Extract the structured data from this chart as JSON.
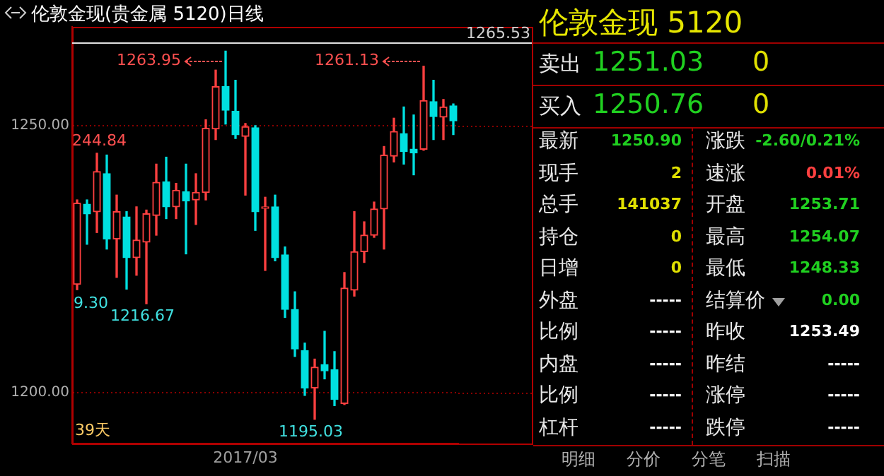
{
  "chart_data": [
    {
      "type": "candlestick",
      "title": "伦敦金现(贵金属 5120)日线",
      "categories": [
        null,
        null,
        null,
        null,
        null,
        null,
        null,
        null,
        null,
        null,
        null,
        null,
        null,
        null,
        null,
        null,
        null,
        "2017/03",
        null,
        null,
        null,
        null,
        null,
        null,
        null,
        null,
        null,
        null,
        null,
        null,
        null,
        null,
        null,
        null,
        null,
        null,
        null,
        null,
        null
      ],
      "ohlc": [
        [
          1220.3,
          1236.1,
          1219.3,
          1235.5
        ],
        [
          1235.3,
          1236.1,
          1227.8,
          1233.5
        ],
        [
          1233.9,
          1244.84,
          1230.0,
          1241.4
        ],
        [
          1241.0,
          1244.5,
          1226.9,
          1228.8
        ],
        [
          1228.8,
          1237.0,
          1221.6,
          1233.9
        ],
        [
          1232.9,
          1233.9,
          1219.4,
          1225.3
        ],
        [
          1225.3,
          1234.8,
          1222.0,
          1228.6
        ],
        [
          1228.2,
          1234.2,
          1216.67,
          1233.5
        ],
        [
          1233.2,
          1242.8,
          1229.5,
          1239.4
        ],
        [
          1239.5,
          1244.1,
          1232.6,
          1234.8
        ],
        [
          1234.8,
          1239.2,
          1232.6,
          1237.9
        ],
        [
          1237.6,
          1242.8,
          1226.0,
          1235.9
        ],
        [
          1236.1,
          1241.0,
          1231.5,
          1237.5
        ],
        [
          1237.5,
          1251.1,
          1236.1,
          1249.5
        ],
        [
          1249.4,
          1260.4,
          1247.4,
          1257.3
        ],
        [
          1257.3,
          1263.95,
          1250.3,
          1252.9
        ],
        [
          1252.7,
          1258.5,
          1247.6,
          1248.3
        ],
        [
          1248.0,
          1250.4,
          1237.0,
          1249.8
        ],
        [
          1249.6,
          1250.0,
          1230.4,
          1233.9
        ],
        [
          1234.5,
          1236.6,
          1222.9,
          1234.8
        ],
        [
          1234.8,
          1237.0,
          1224.7,
          1225.3
        ],
        [
          1225.8,
          1227.3,
          1214.1,
          1215.6
        ],
        [
          1215.6,
          1218.9,
          1206.8,
          1208.2
        ],
        [
          1207.9,
          1209.3,
          1199.5,
          1200.9
        ],
        [
          1200.9,
          1206.3,
          1195.03,
          1204.8
        ],
        [
          1205.3,
          1211.5,
          1202.6,
          1204.1
        ],
        [
          1204.3,
          1207.7,
          1197.6,
          1198.8
        ],
        [
          1198.0,
          1222.5,
          1197.8,
          1219.6
        ],
        [
          1219.2,
          1233.9,
          1218.1,
          1226.4
        ],
        [
          1226.4,
          1232.0,
          1224.4,
          1229.5
        ],
        [
          1229.5,
          1235.7,
          1229.1,
          1234.4
        ],
        [
          1234.4,
          1246.1,
          1226.9,
          1244.5
        ],
        [
          1244.3,
          1251.4,
          1243.2,
          1248.9
        ],
        [
          1248.5,
          1253.5,
          1242.8,
          1245.2
        ],
        [
          1245.6,
          1252.0,
          1240.8,
          1244.9
        ],
        [
          1245.6,
          1261.13,
          1245.4,
          1254.7
        ],
        [
          1254.5,
          1258.5,
          1247.4,
          1251.7
        ],
        [
          1251.6,
          1254.9,
          1247.4,
          1253.5
        ],
        [
          1253.71,
          1254.07,
          1248.33,
          1250.9
        ]
      ],
      "colors": [
        "#ff4040",
        "#00e0e0",
        "#ff4040",
        "#00e0e0",
        "#ff4040",
        "#00e0e0",
        "#ff4040",
        "#ff4040",
        "#ff4040",
        "#00e0e0",
        "#ff4040",
        "#00e0e0",
        "#ff4040",
        "#ff4040",
        "#ff4040",
        "#00e0e0",
        "#00e0e0",
        "#ff4040",
        "#00e0e0",
        "#ff4040",
        "#00e0e0",
        "#00e0e0",
        "#00e0e0",
        "#00e0e0",
        "#ff4040",
        "#00e0e0",
        "#00e0e0",
        "#ff4040",
        "#ff4040",
        "#ff4040",
        "#ff4040",
        "#ff4040",
        "#ff4040",
        "#00e0e0",
        "#00e0e0",
        "#ff4040",
        "#00e0e0",
        "#ff4040",
        "#00e0e0"
      ],
      "ylim": [
        1190.5,
        1268.5
      ],
      "yticks": [
        {
          "value": 1200,
          "label": "1200.00"
        },
        {
          "value": 1250,
          "label": "1250.00"
        }
      ],
      "grid": "y",
      "ref_lines": [
        {
          "axis": "y",
          "value": 1265.53,
          "label": "1265.53",
          "color": "#e0e0e0"
        }
      ],
      "annotations": [
        "1263.95",
        "1261.13",
        "244.84",
        "9.30",
        "1216.67",
        "1195.03",
        "39天"
      ]
    },
    {
      "type": "other",
      "title": "伦敦金现 5120",
      "annotations": [
        "卖出",
        "1251.03",
        "0",
        "买入",
        "1250.76",
        "0",
        "最新",
        "1250.90",
        "涨跌",
        "-2.60/0.21%",
        "现手",
        "2",
        "速涨",
        "0.01%",
        "总手",
        "141037",
        "开盘",
        "1253.71",
        "持仓",
        "0",
        "最高",
        "1254.07",
        "日增",
        "0",
        "最低",
        "1248.33",
        "外盘",
        "-----",
        "结算价",
        "0.00",
        "比例",
        "-----",
        "昨收",
        "1253.49",
        "内盘",
        "-----",
        "昨结",
        "-----",
        "比例",
        "-----",
        "涨停",
        "-----",
        "杠杆",
        "-----",
        "跌停",
        "-----",
        "明细",
        "分价",
        "分笔",
        "扫描"
      ]
    }
  ]
}
